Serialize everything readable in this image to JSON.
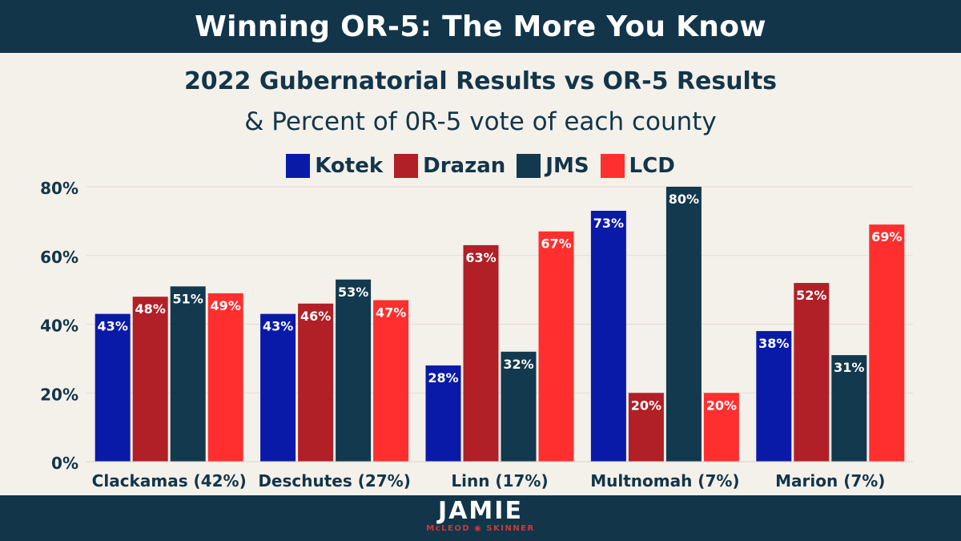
{
  "banner": {
    "title": "Winning OR-5: The More You Know"
  },
  "logo": {
    "name": "JAMIE",
    "tagline": "McLEOD ◉ SKINNER"
  },
  "colors": {
    "Kotek": "#0a1aa8",
    "Drazan": "#b11f27",
    "JMS": "#12394e",
    "LCD": "#ff2f2f",
    "axis_text": "#12354a",
    "banner": "#12354a",
    "background": "#f4f0ea"
  },
  "chart_data": {
    "type": "bar",
    "title": "2022 Gubernatorial Results vs OR-5 Results",
    "subtitle": "& Percent of 0R-5 vote of each county",
    "categories": [
      "Clackamas (42%)",
      "Deschutes (27%)",
      "Linn (17%)",
      "Multnomah (7%)",
      "Marion (7%)"
    ],
    "series": [
      {
        "name": "Kotek",
        "values": [
          43,
          43,
          28,
          73,
          38
        ]
      },
      {
        "name": "Drazan",
        "values": [
          48,
          46,
          63,
          20,
          52
        ]
      },
      {
        "name": "JMS",
        "values": [
          51,
          53,
          32,
          80,
          31
        ]
      },
      {
        "name": "LCD",
        "values": [
          49,
          47,
          67,
          20,
          69
        ]
      }
    ],
    "yticks": [
      "0%",
      "20%",
      "40%",
      "60%",
      "80%"
    ],
    "ylim": [
      0,
      80
    ],
    "grid": true,
    "legend_position": "top-center",
    "value_suffix": "%"
  }
}
